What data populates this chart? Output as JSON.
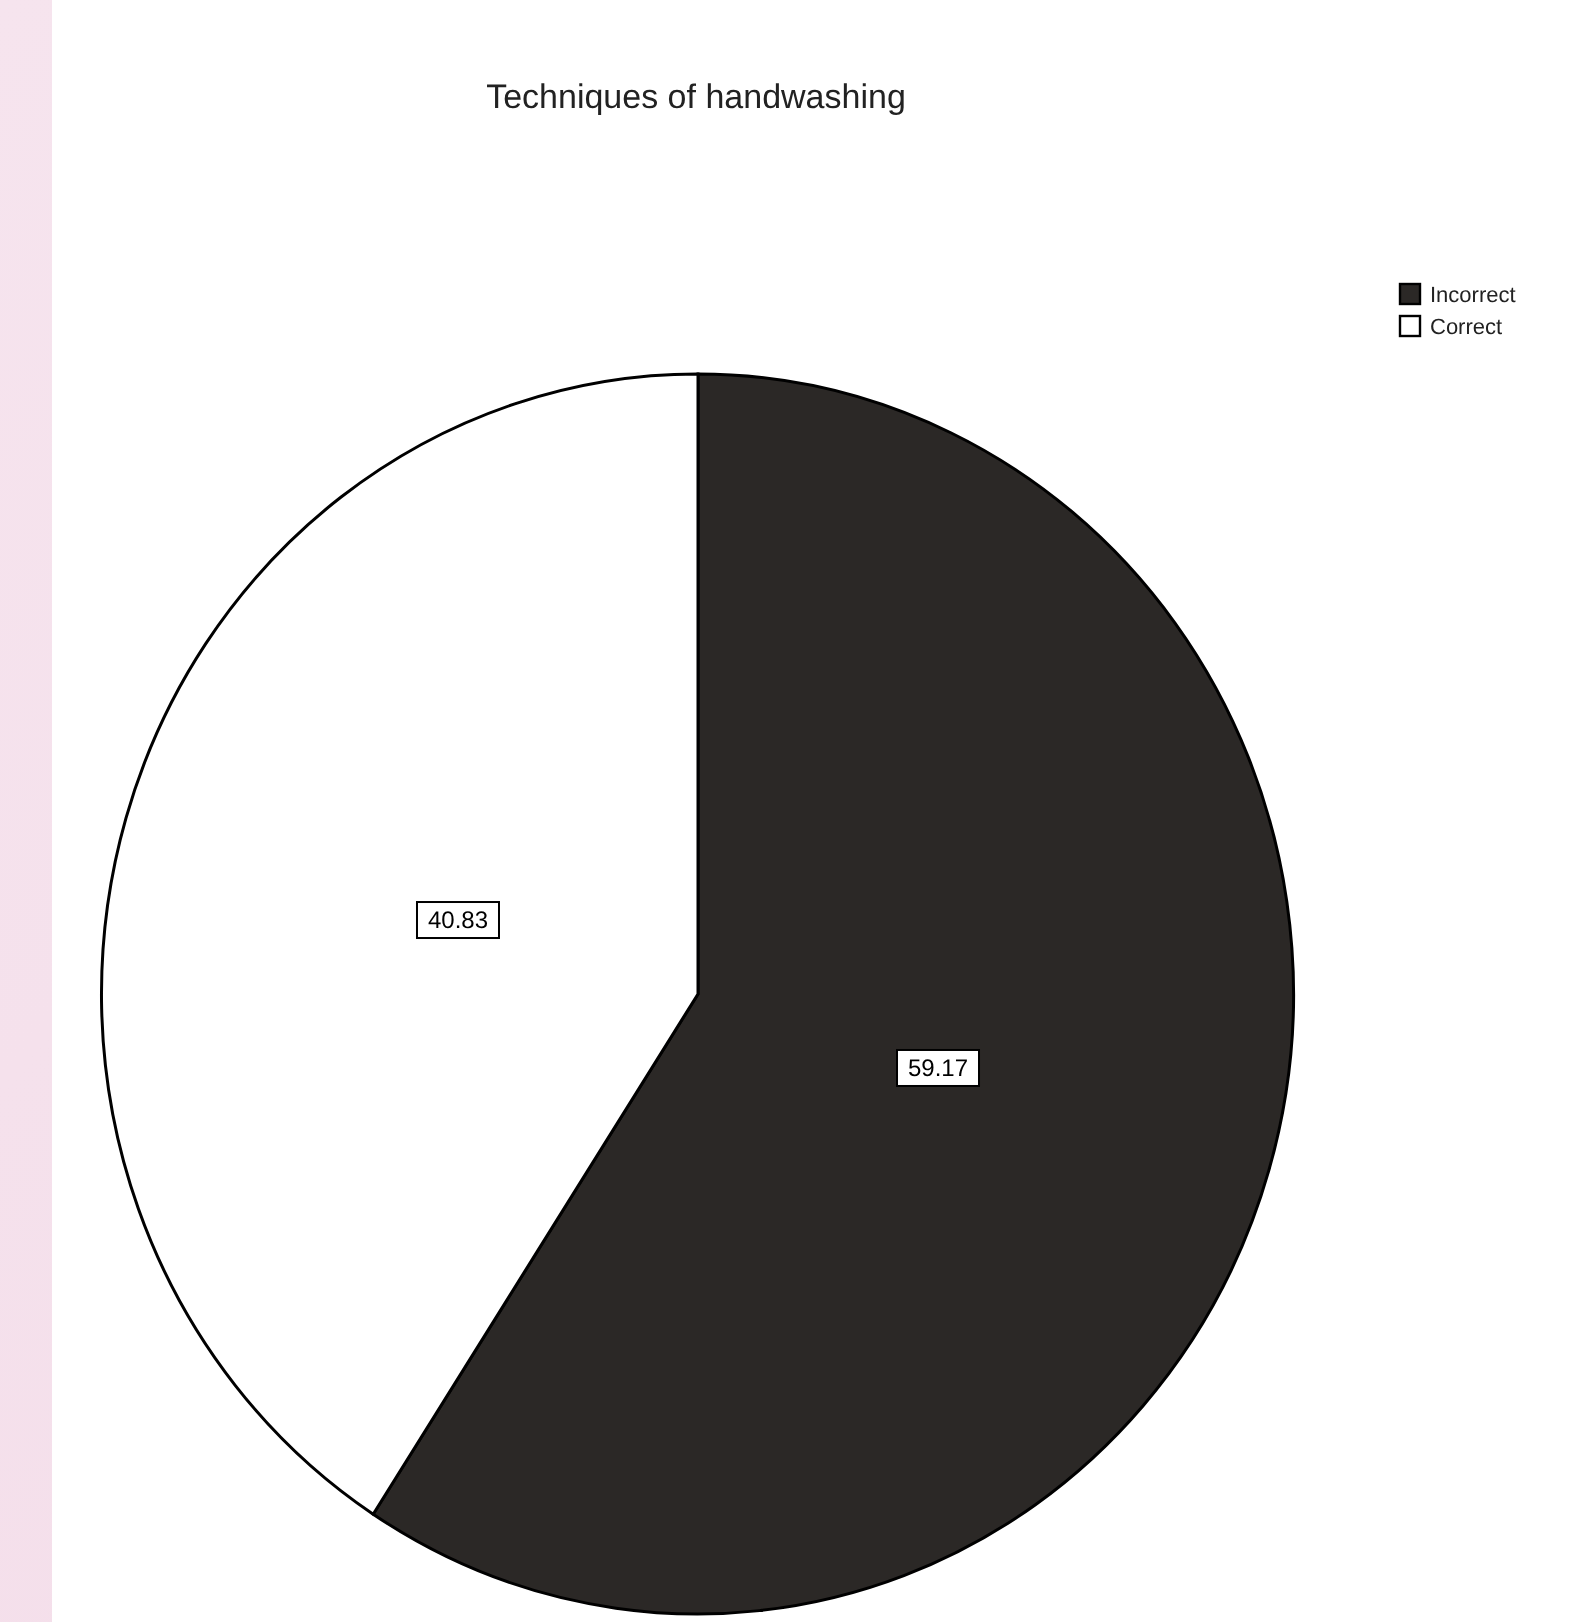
{
  "chart_data": {
    "type": "pie",
    "title": "Techniques of handwashing",
    "categories": [
      "Incorrect",
      "Correct"
    ],
    "values": [
      59.17,
      40.83
    ],
    "colors": [
      "#2b2826",
      "#ffffff"
    ],
    "data_labels": true,
    "legend": "top right"
  }
}
